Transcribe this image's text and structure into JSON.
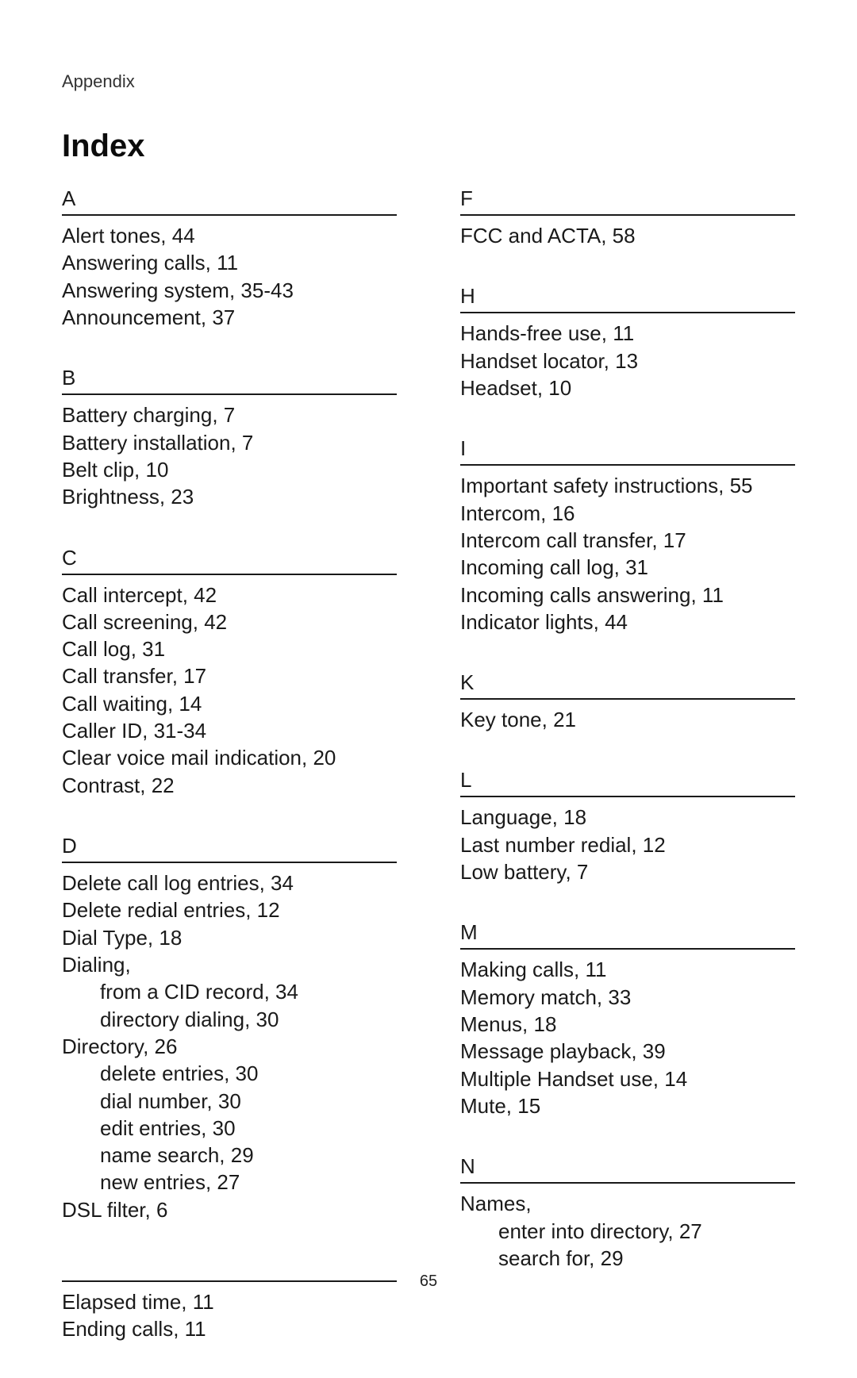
{
  "header": {
    "appendix": "Appendix",
    "title": "Index"
  },
  "page_number": "65",
  "colors": {
    "text": "#1a1a1a",
    "rule": "#1a1a1a",
    "background": "#ffffff"
  },
  "typography": {
    "title_fontsize": 40,
    "letter_fontsize": 26,
    "entry_fontsize": 26,
    "appendix_fontsize": 22,
    "pagenum_fontsize": 20
  },
  "left": {
    "A": {
      "letter": "A",
      "entries": [
        {
          "t": "Alert tones, 44"
        },
        {
          "t": "Answering calls, 11"
        },
        {
          "t": "Answering system, 35-43"
        },
        {
          "t": "Announcement, 37"
        }
      ]
    },
    "B": {
      "letter": "B",
      "entries": [
        {
          "t": "Battery charging, 7"
        },
        {
          "t": "Battery installation, 7"
        },
        {
          "t": "Belt clip, 10"
        },
        {
          "t": "Brightness, 23"
        }
      ]
    },
    "C": {
      "letter": "C",
      "entries": [
        {
          "t": "Call intercept, 42"
        },
        {
          "t": "Call screening, 42"
        },
        {
          "t": "Call log, 31"
        },
        {
          "t": "Call transfer, 17"
        },
        {
          "t": "Call waiting, 14"
        },
        {
          "t": "Caller ID, 31-34"
        },
        {
          "t": "Clear voice mail indication, 20"
        },
        {
          "t": "Contrast, 22"
        }
      ]
    },
    "D": {
      "letter": "D",
      "entries": [
        {
          "t": "Delete call log entries, 34"
        },
        {
          "t": "Delete redial entries, 12"
        },
        {
          "t": "Dial Type, 18"
        },
        {
          "t": "Dialing,"
        },
        {
          "t": "from a CID record, 34",
          "sub": true
        },
        {
          "t": "directory dialing, 30",
          "sub": true
        },
        {
          "t": "Directory, 26"
        },
        {
          "t": "delete entries, 30",
          "sub": true
        },
        {
          "t": "dial number, 30",
          "sub": true
        },
        {
          "t": "edit entries, 30",
          "sub": true
        },
        {
          "t": "name search, 29",
          "sub": true
        },
        {
          "t": "new entries, 27",
          "sub": true
        },
        {
          "t": "DSL filter, 6"
        }
      ]
    },
    "E": {
      "letter": "",
      "entries": [
        {
          "t": "Elapsed time, 11"
        },
        {
          "t": "Ending calls, 11"
        }
      ]
    }
  },
  "right": {
    "F": {
      "letter": "F",
      "entries": [
        {
          "t": "FCC and ACTA, 58"
        }
      ]
    },
    "H": {
      "letter": "H",
      "entries": [
        {
          "t": "Hands-free use, 11"
        },
        {
          "t": "Handset locator, 13"
        },
        {
          "t": "Headset, 10"
        }
      ]
    },
    "I": {
      "letter": "I",
      "entries": [
        {
          "t": "Important safety instructions, 55"
        },
        {
          "t": "Intercom, 16"
        },
        {
          "t": "Intercom call transfer, 17"
        },
        {
          "t": "Incoming call log, 31"
        },
        {
          "t": "Incoming calls answering, 11"
        },
        {
          "t": "Indicator lights, 44"
        }
      ]
    },
    "K": {
      "letter": "K",
      "entries": [
        {
          "t": "Key tone, 21"
        }
      ]
    },
    "L": {
      "letter": "L",
      "entries": [
        {
          "t": "Language, 18"
        },
        {
          "t": "Last number redial, 12"
        },
        {
          "t": "Low battery, 7"
        }
      ]
    },
    "M": {
      "letter": "M",
      "entries": [
        {
          "t": "Making calls, 11"
        },
        {
          "t": "Memory match, 33"
        },
        {
          "t": "Menus, 18"
        },
        {
          "t": "Message playback, 39"
        },
        {
          "t": "Multiple Handset use, 14"
        },
        {
          "t": "Mute, 15"
        }
      ]
    },
    "N": {
      "letter": "N",
      "entries": [
        {
          "t": "Names,"
        },
        {
          "t": "enter into directory, 27",
          "sub": true
        },
        {
          "t": "search for, 29",
          "sub": true
        }
      ]
    }
  }
}
